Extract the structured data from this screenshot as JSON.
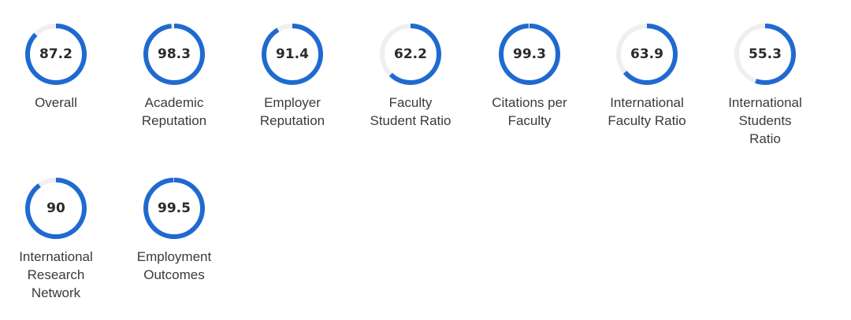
{
  "colors": {
    "accent": "#1f6ad0",
    "track": "#efefef",
    "value_text": "#2b2b2b",
    "label_text": "#3a3a3a"
  },
  "metrics": [
    {
      "value": "87.2",
      "label": "Overall",
      "score": 87.2
    },
    {
      "value": "98.3",
      "label": "Academic\nReputation",
      "score": 98.3
    },
    {
      "value": "91.4",
      "label": "Employer\nReputation",
      "score": 91.4
    },
    {
      "value": "62.2",
      "label": "Faculty\nStudent Ratio",
      "score": 62.2
    },
    {
      "value": "99.3",
      "label": "Citations per\nFaculty",
      "score": 99.3
    },
    {
      "value": "63.9",
      "label": "International\nFaculty Ratio",
      "score": 63.9
    },
    {
      "value": "55.3",
      "label": "International\nStudents\nRatio",
      "score": 55.3
    },
    {
      "value": "90",
      "label": "International\nResearch\nNetwork",
      "score": 90
    },
    {
      "value": "99.5",
      "label": "Employment\nOutcomes",
      "score": 99.5
    }
  ]
}
